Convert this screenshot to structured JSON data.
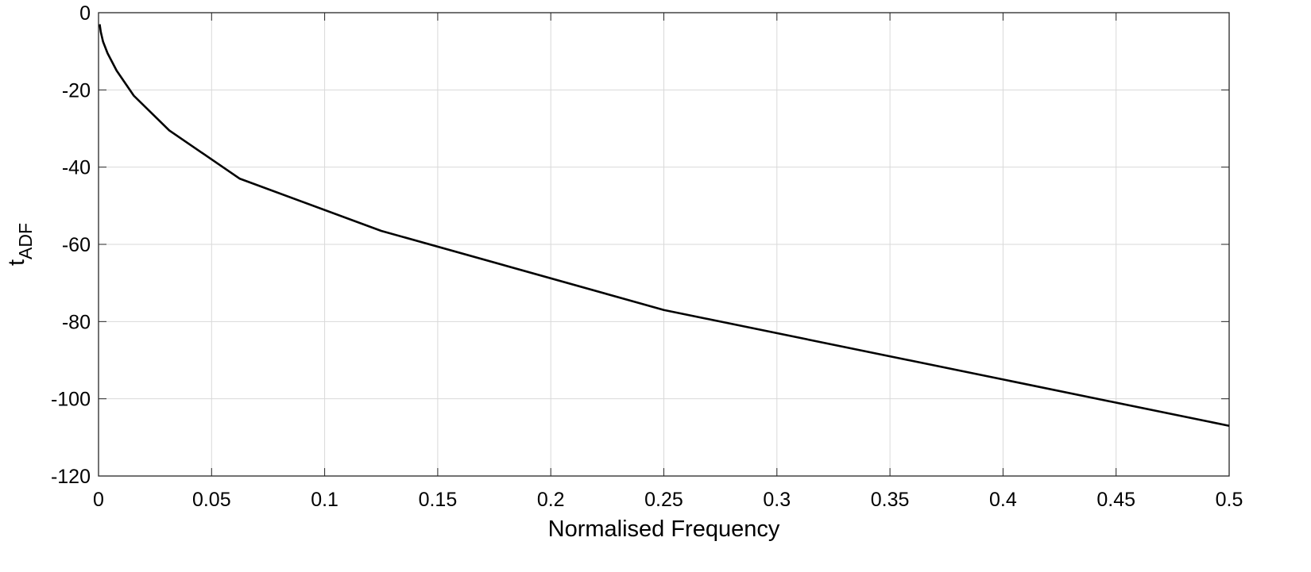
{
  "chart_data": {
    "type": "line",
    "title": "",
    "xlabel": "Normalised Frequency",
    "ylabel": {
      "main": "t",
      "subscript": "ADF"
    },
    "xlim": [
      0,
      0.5
    ],
    "ylim": [
      -120,
      0
    ],
    "xticks": [
      0,
      0.05,
      0.1,
      0.15,
      0.2,
      0.25,
      0.3,
      0.35,
      0.4,
      0.45,
      0.5
    ],
    "xtick_labels": [
      "0",
      "0.05",
      "0.1",
      "0.15",
      "0.2",
      "0.25",
      "0.3",
      "0.35",
      "0.4",
      "0.45",
      "0.5"
    ],
    "yticks": [
      0,
      -20,
      -40,
      -60,
      -80,
      -100,
      -120
    ],
    "ytick_labels": [
      "0",
      "-20",
      "-40",
      "-60",
      "-80",
      "-100",
      "-120"
    ],
    "grid": true,
    "legend": "none",
    "series": [
      {
        "color": "#000000",
        "x": [
          0.0005,
          0.001,
          0.002,
          0.004,
          0.008,
          0.0156,
          0.0313,
          0.0625,
          0.125,
          0.25,
          0.5
        ],
        "y": [
          -3,
          -5,
          -7.5,
          -10.5,
          -15,
          -21.5,
          -30.5,
          -43,
          -56.5,
          -77,
          -107
        ]
      }
    ]
  }
}
